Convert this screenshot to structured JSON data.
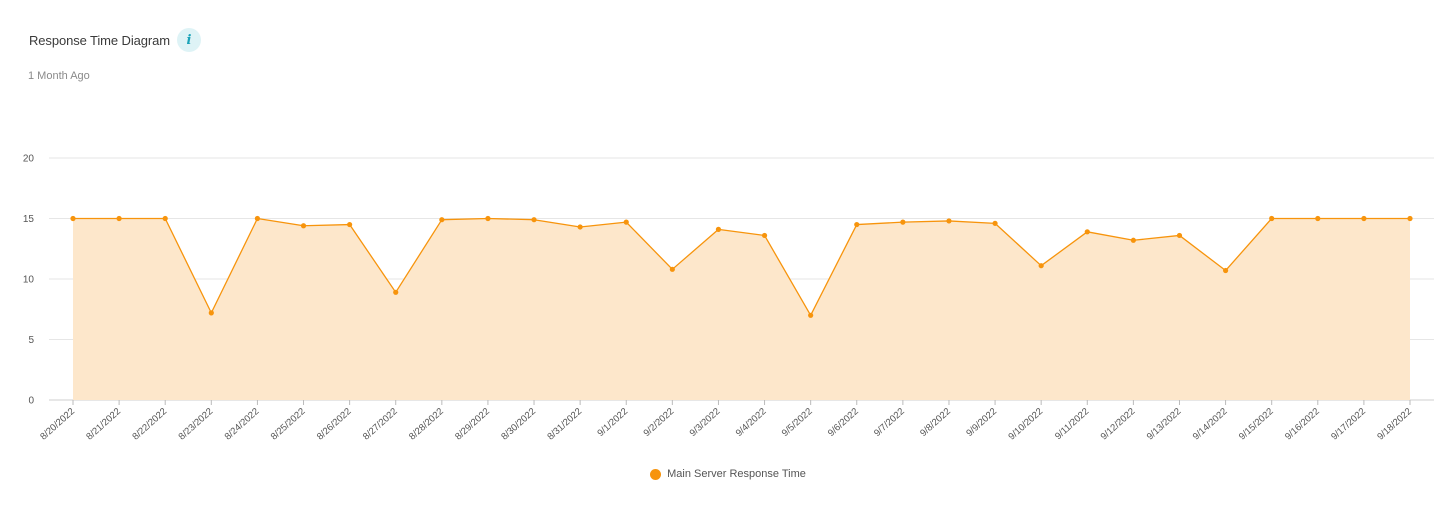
{
  "header": {
    "title": "Response Time Diagram",
    "info_icon": "info-icon",
    "subtitle": "1 Month Ago"
  },
  "colors": {
    "line": "#f7940c",
    "fill": "#fde7cb",
    "grid": "#e6e6e6",
    "info_bg": "#def3f6",
    "info_fg": "#1aa3b8"
  },
  "chart_data": {
    "type": "area",
    "x": [
      "8/20/2022",
      "8/21/2022",
      "8/22/2022",
      "8/23/2022",
      "8/24/2022",
      "8/25/2022",
      "8/26/2022",
      "8/27/2022",
      "8/28/2022",
      "8/29/2022",
      "8/30/2022",
      "8/31/2022",
      "9/1/2022",
      "9/2/2022",
      "9/3/2022",
      "9/4/2022",
      "9/5/2022",
      "9/6/2022",
      "9/7/2022",
      "9/8/2022",
      "9/9/2022",
      "9/10/2022",
      "9/11/2022",
      "9/12/2022",
      "9/13/2022",
      "9/14/2022",
      "9/15/2022",
      "9/16/2022",
      "9/17/2022",
      "9/18/2022"
    ],
    "series": [
      {
        "name": "Main Server Response Time",
        "values": [
          15,
          15,
          15,
          7.2,
          15,
          14.4,
          14.5,
          8.9,
          14.9,
          15,
          14.9,
          14.3,
          14.7,
          10.8,
          14.1,
          13.6,
          7.0,
          14.5,
          14.7,
          14.8,
          14.6,
          11.1,
          13.9,
          13.2,
          13.6,
          10.7,
          15,
          15,
          15,
          15
        ]
      }
    ],
    "yticks": [
      0,
      5,
      10,
      15,
      20
    ],
    "ylim": [
      0,
      20
    ],
    "grid": true,
    "legend_position": "bottom-center"
  }
}
